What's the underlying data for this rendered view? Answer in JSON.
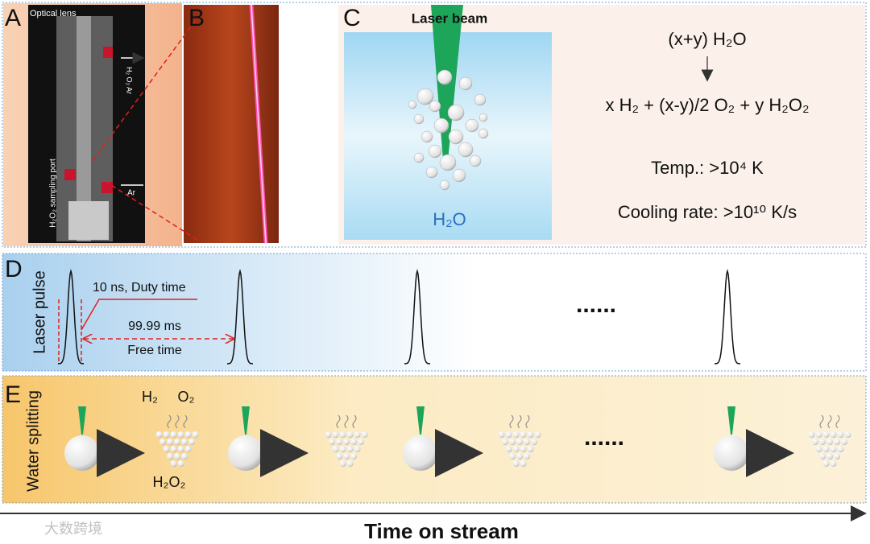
{
  "panel_a": {
    "label": "A",
    "optical_lens": "Optical lens",
    "gases_out": "H₂ O₂ Ar",
    "sampling_port": "H₂O₂ sampling port",
    "gas_in": "Ar"
  },
  "panel_b": {
    "label": "B"
  },
  "panel_c": {
    "label": "C",
    "laser_beam": "Laser beam",
    "water": "H₂O",
    "reactant": "(x+y) H₂O",
    "products": "x H₂ + (x-y)/2 O₂ + y H₂O₂",
    "temperature": "Temp.: >10⁴ K",
    "cooling_rate": "Cooling rate: >10¹⁰ K/s"
  },
  "panel_d": {
    "label": "D",
    "axis_label": "Laser pulse",
    "duty": "10 ns, Duty time",
    "interval": "99.99 ms",
    "free": "Free time",
    "ellipsis": "......"
  },
  "panel_e": {
    "label": "E",
    "axis_label": "Water splitting",
    "h2": "H₂",
    "o2": "O₂",
    "h2o2": "H₂O₂",
    "ellipsis": "......"
  },
  "x_axis": "Time on stream",
  "watermark": "大数跨境"
}
